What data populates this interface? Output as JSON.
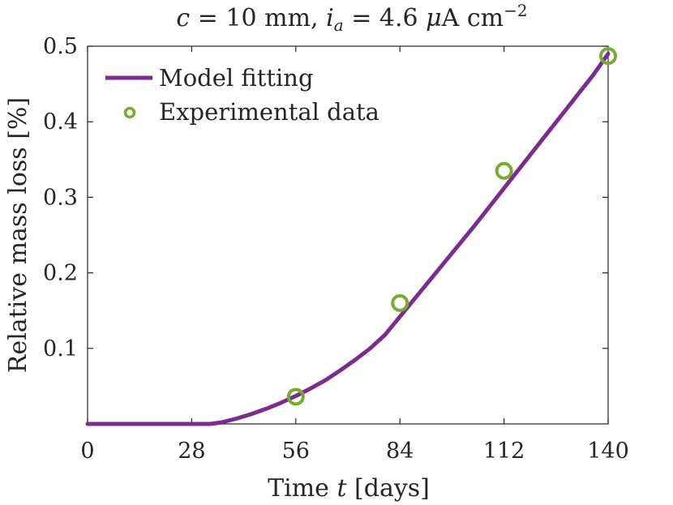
{
  "chart_data": {
    "type": "line",
    "title": "c = 10 mm, i_a = 4.6 μA cm^-2",
    "title_parts": {
      "c_var": "c",
      "eq1": " = 10 mm, ",
      "i_var": "i",
      "i_sub": "a",
      "eq2": " = 4.6 ",
      "mu": "μ",
      "unit": "A cm",
      "exp": "−2"
    },
    "xlabel": "Time t [days]",
    "xlabel_parts": {
      "pre": "Time ",
      "var": "t",
      "post": " [days]"
    },
    "ylabel": "Relative mass loss [%]",
    "xlim": [
      0,
      140
    ],
    "ylim": [
      0,
      0.5
    ],
    "xticks": [
      0,
      28,
      56,
      84,
      112,
      140
    ],
    "yticks": [
      0.1,
      0.2,
      0.3,
      0.4,
      0.5
    ],
    "xtick_labels": [
      "0",
      "28",
      "56",
      "84",
      "112",
      "140"
    ],
    "ytick_labels": [
      "0.1",
      "0.2",
      "0.3",
      "0.4",
      "0.5"
    ],
    "legend_position": "top-left",
    "series": [
      {
        "name": "Model fitting",
        "kind": "line",
        "color": "#7b2d8e",
        "x": [
          0,
          10,
          20,
          28,
          33,
          36,
          40,
          44,
          48,
          52,
          56,
          60,
          64,
          68,
          72,
          76,
          80,
          84,
          88,
          92,
          96,
          100,
          104,
          108,
          112,
          116,
          120,
          124,
          128,
          132,
          136,
          140
        ],
        "y": [
          0,
          0,
          0,
          0,
          0,
          0.002,
          0.007,
          0.013,
          0.02,
          0.028,
          0.037,
          0.047,
          0.058,
          0.071,
          0.085,
          0.1,
          0.118,
          0.142,
          0.166,
          0.19,
          0.214,
          0.238,
          0.262,
          0.287,
          0.312,
          0.337,
          0.362,
          0.387,
          0.412,
          0.437,
          0.462,
          0.49
        ]
      },
      {
        "name": "Experimental data",
        "kind": "scatter",
        "color": "#77ac30",
        "x": [
          56,
          84,
          112,
          140
        ],
        "y": [
          0.036,
          0.16,
          0.335,
          0.487
        ]
      }
    ]
  }
}
